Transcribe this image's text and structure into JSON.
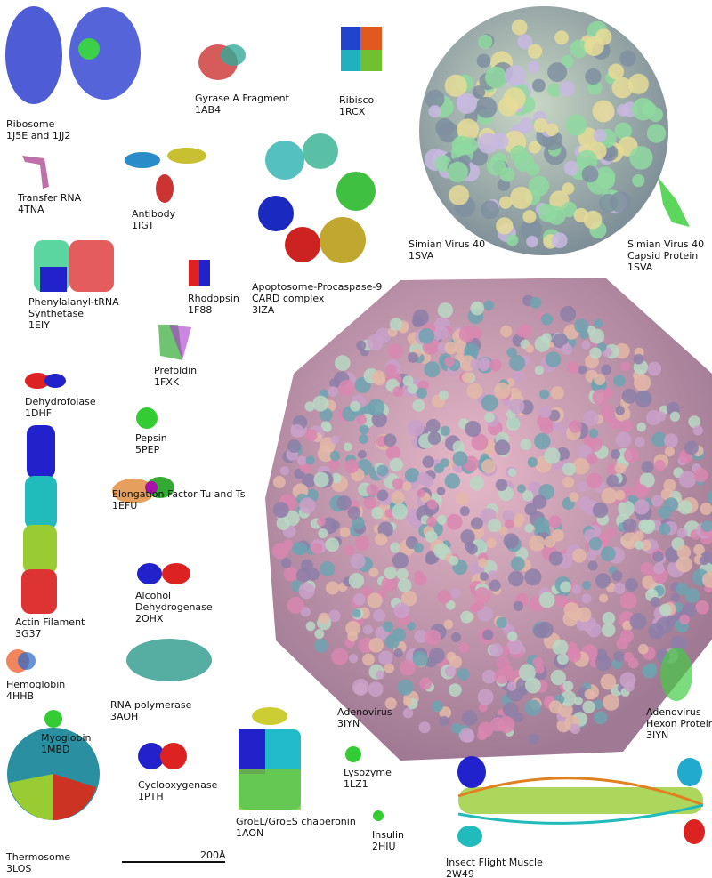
{
  "labels": [
    {
      "key": "ribosome",
      "lines": [
        "Ribosome",
        "1J5E and 1JJ2"
      ]
    },
    {
      "key": "gyrase",
      "lines": [
        "Gyrase A Fragment",
        "1AB4"
      ]
    },
    {
      "key": "ribisco",
      "lines": [
        "Ribisco",
        "1RCX"
      ]
    },
    {
      "key": "trna",
      "lines": [
        "Transfer RNA",
        "4TNA"
      ]
    },
    {
      "key": "antibody",
      "lines": [
        "Antibody",
        "1IGT"
      ]
    },
    {
      "key": "sv40",
      "lines": [
        "Simian Virus 40",
        "1SVA"
      ]
    },
    {
      "key": "sv40-capsid",
      "lines": [
        "Simian Virus 40",
        "Capsid Protein",
        "1SVA"
      ]
    },
    {
      "key": "phe-trna",
      "lines": [
        "Phenylalanyl-tRNA",
        "Synthetase",
        "1EIY"
      ]
    },
    {
      "key": "rhodopsin",
      "lines": [
        "Rhodopsin",
        "1F88"
      ]
    },
    {
      "key": "apoptosome",
      "lines": [
        "Apoptosome-Procaspase-9",
        "CARD complex",
        "3IZA"
      ]
    },
    {
      "key": "prefoldin",
      "lines": [
        "Prefoldin",
        "1FXK"
      ]
    },
    {
      "key": "dehydrofolase",
      "lines": [
        "Dehydrofolase",
        "1DHF"
      ]
    },
    {
      "key": "pepsin",
      "lines": [
        "Pepsin",
        "5PEP"
      ]
    },
    {
      "key": "ef-tu",
      "lines": [
        "Elongation Factor Tu and Ts",
        "1EFU"
      ]
    },
    {
      "key": "alcohol-dh",
      "lines": [
        "Alcohol",
        "Dehydrogenase",
        "2OHX"
      ]
    },
    {
      "key": "actin",
      "lines": [
        "Actin Filament",
        "3G37"
      ]
    },
    {
      "key": "hemoglobin",
      "lines": [
        "Hemoglobin",
        "4HHB"
      ]
    },
    {
      "key": "rna-pol",
      "lines": [
        "RNA polymerase",
        "3AOH"
      ]
    },
    {
      "key": "adenovirus",
      "lines": [
        "Adenovirus",
        "3IYN"
      ]
    },
    {
      "key": "hexon",
      "lines": [
        "Adenovirus",
        "Hexon Protein",
        "3IYN"
      ]
    },
    {
      "key": "myoglobin",
      "lines": [
        "Myoglobin",
        "1MBD"
      ]
    },
    {
      "key": "cyclooxygenase",
      "lines": [
        "Cyclooxygenase",
        "1PTH"
      ]
    },
    {
      "key": "lysozyme",
      "lines": [
        "Lysozyme",
        "1LZ1"
      ]
    },
    {
      "key": "groel",
      "lines": [
        "GroEL/GroES chaperonin",
        "1AON"
      ]
    },
    {
      "key": "insulin",
      "lines": [
        "Insulin",
        "2HIU"
      ]
    },
    {
      "key": "thermosome",
      "lines": [
        "Thermosome",
        "3LOS"
      ]
    },
    {
      "key": "flight-muscle",
      "lines": [
        "Insect Flight Muscle",
        "2W49"
      ]
    }
  ],
  "scale_bar": {
    "label": "200Å"
  },
  "colors": {
    "sv40": [
      "#8fd9a0",
      "#c8b8e0",
      "#e6dc98",
      "#7f8fa0"
    ],
    "adenovirus": [
      "#d987b0",
      "#c9a1c9",
      "#b9d8c4",
      "#8d7fa8",
      "#e3b9a8",
      "#6fa3b0"
    ]
  }
}
